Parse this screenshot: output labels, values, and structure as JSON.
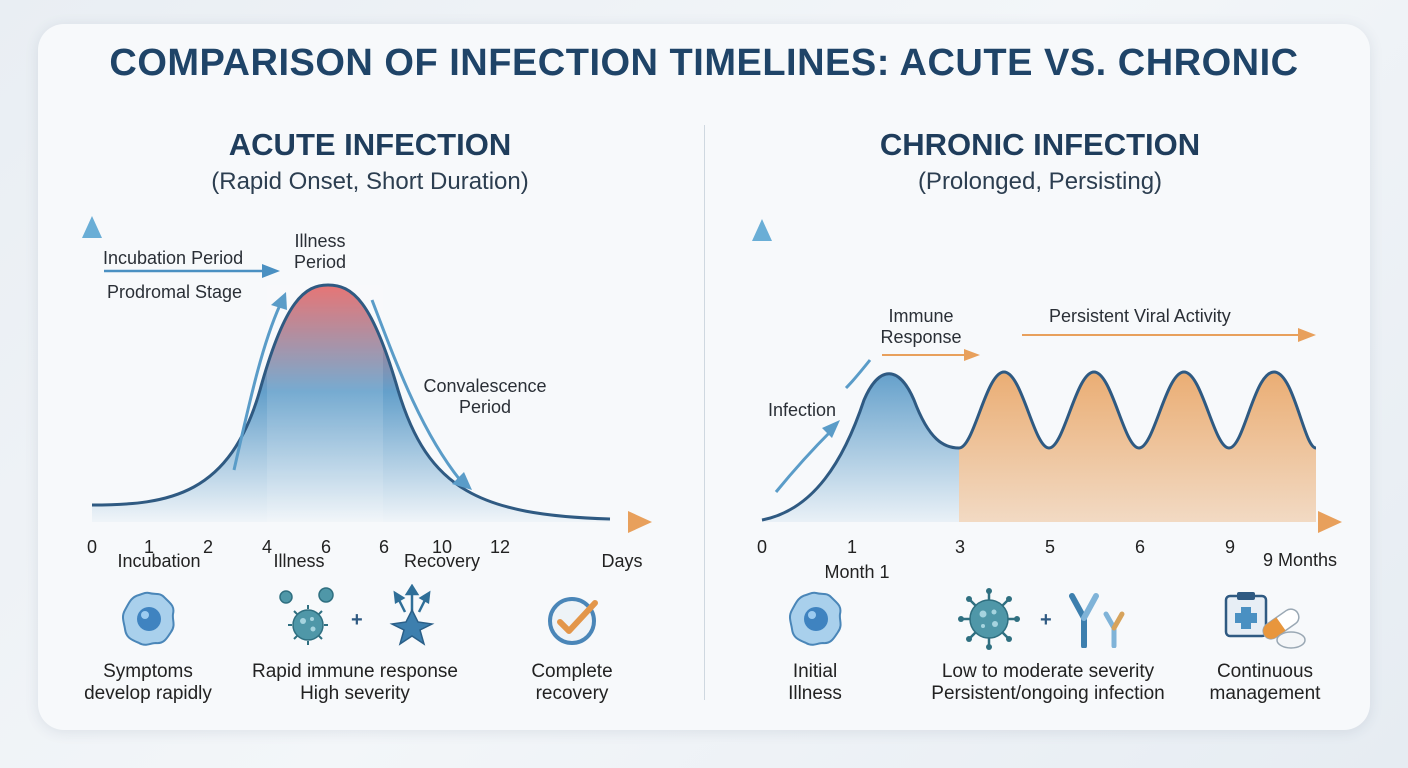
{
  "title": "COMPARISON OF INFECTION TIMELINES: ACUTE VS. CHRONIC",
  "colors": {
    "navy": "#1f4468",
    "blue": "#4a90c2",
    "red": "#e04848",
    "orange": "#e8a05c",
    "curve": "#2f5a82"
  },
  "acute": {
    "title": "ACUTE INFECTION",
    "subtitle": "(Rapid Onset, Short Duration)",
    "labels": {
      "incubation_period": "Incubation Period",
      "prodromal_stage": "Prodromal Stage",
      "illness_period": "Illness\nPeriod",
      "convalescence_period": "Convalescence\nPeriod"
    },
    "x_ticks": [
      "0",
      "1",
      "2",
      "4",
      "6",
      "6",
      "10",
      "12"
    ],
    "phases": [
      "Incubation",
      "Illness",
      "Recovery"
    ],
    "x_unit": "Days",
    "features": [
      {
        "icon": "cell-icon",
        "caption": "Symptoms\ndevelop rapidly"
      },
      {
        "icon": "virus-immune-icon",
        "caption": "Rapid immune response\nHigh severity",
        "plus": "+"
      },
      {
        "icon": "checkmark-icon",
        "caption": "Complete\nrecovery"
      }
    ]
  },
  "chronic": {
    "title": "CHRONIC INFECTION",
    "subtitle": "(Prolonged, Persisting)",
    "labels": {
      "immune_response": "Immune\nResponse",
      "persistent_viral_activity": "Persistent Viral Activity",
      "infection": "Infection"
    },
    "x_ticks": [
      "0",
      "1",
      "3",
      "5",
      "6",
      "9"
    ],
    "month_label": "Month 1",
    "x_unit": "9 Months",
    "features": [
      {
        "icon": "cell-icon",
        "caption": "Initial\nIllness"
      },
      {
        "icon": "virus-antibody-icon",
        "caption": "Low to moderate severity\nPersistent/ongoing infection",
        "plus": "+"
      },
      {
        "icon": "medical-kit-pills-icon",
        "caption": "Continuous\nmanagement"
      }
    ]
  }
}
